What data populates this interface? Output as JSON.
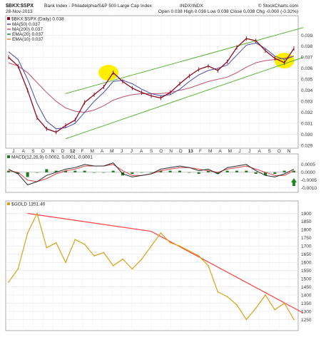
{
  "header": {
    "symbol": "$BKX:$SPX",
    "description": "Bank Index - Philadelphia/S&P 500 Large Cap Index",
    "exchange": "INDX/INDX",
    "watermark": "© StockCharts.com",
    "date": "28-Nov-2013",
    "ohlc_text": "Open 0.038  High 0.038  Low 0.038  Close 0.038  Chg -0.000 (-0.32%)"
  },
  "colors": {
    "price_bar": "#8b0a1e",
    "ma50": "#4a4aa8",
    "ma200": "#c0506a",
    "channel": "#5cb33a",
    "highlight": "#ffee00",
    "gold_line": "#d9a21a",
    "gold_trend": "#ff4040",
    "macd_line": "#2a2a2a",
    "macd_signal": "#d34545",
    "macd_hist": "#1f7a1f",
    "arrow": "#1f8a1f"
  },
  "chart_data": [
    {
      "type": "line",
      "title": "$BKX:$SPX (Daily) 0.038",
      "legend": [
        {
          "name": "MA(50) 0.037",
          "color": "#4a4aa8"
        },
        {
          "name": "MA(200) 0.037",
          "color": "#c0506a"
        },
        {
          "name": "EMA(20) 0.037",
          "color": "#22883a"
        },
        {
          "name": "EMA(10) 0.037",
          "color": "#e08a2a"
        }
      ],
      "ylim": [
        0.029,
        0.04
      ],
      "y_ticks": [
        "0.039",
        "0.038",
        "0.037",
        "0.036",
        "0.035",
        "0.034",
        "0.033",
        "0.032",
        "0.031",
        "0.030",
        "0.029"
      ],
      "x_labels": [
        "J",
        "A",
        "S",
        "O",
        "N",
        "D",
        "12",
        "F",
        "M",
        "A",
        "M",
        "J",
        "J",
        "A",
        "S",
        "O",
        "N",
        "D",
        "13",
        "F",
        "M",
        "A",
        "M",
        "J",
        "J",
        "A",
        "S",
        "O",
        "N"
      ],
      "x_bold": [
        "12",
        "13"
      ],
      "series": [
        {
          "name": "Price",
          "x": [
            0,
            1,
            2,
            3,
            4,
            5,
            6,
            7,
            8,
            9,
            10,
            11,
            12,
            13,
            14,
            15,
            16,
            17,
            18,
            19,
            20,
            21,
            22,
            23,
            24,
            25,
            26,
            27,
            28,
            29,
            30
          ],
          "values": [
            0.037,
            0.0362,
            0.034,
            0.0315,
            0.0305,
            0.0302,
            0.0308,
            0.0313,
            0.0329,
            0.0336,
            0.0343,
            0.0356,
            0.0348,
            0.0342,
            0.0338,
            0.0335,
            0.0333,
            0.0338,
            0.0346,
            0.0353,
            0.0359,
            0.0362,
            0.0358,
            0.0366,
            0.0379,
            0.0387,
            0.0385,
            0.0376,
            0.0369,
            0.0365,
            0.0378
          ]
        },
        {
          "name": "MA(50)",
          "x": [
            0,
            1,
            2,
            3,
            4,
            5,
            6,
            7,
            8,
            9,
            10,
            11,
            12,
            13,
            14,
            15,
            16,
            17,
            18,
            19,
            20,
            21,
            22,
            23,
            24,
            25,
            26,
            27,
            28,
            29,
            30
          ],
          "values": [
            0.0375,
            0.0368,
            0.035,
            0.0328,
            0.0312,
            0.0305,
            0.0306,
            0.031,
            0.032,
            0.033,
            0.0338,
            0.0348,
            0.0349,
            0.0346,
            0.0341,
            0.0337,
            0.0335,
            0.0336,
            0.0341,
            0.0348,
            0.0354,
            0.0358,
            0.036,
            0.0363,
            0.0372,
            0.0381,
            0.0383,
            0.0378,
            0.0371,
            0.0368,
            0.0371
          ]
        },
        {
          "name": "MA(200)",
          "x": [
            0,
            1,
            2,
            3,
            4,
            5,
            6,
            7,
            8,
            9,
            10,
            11,
            12,
            13,
            14,
            15,
            16,
            17,
            18,
            19,
            20,
            21,
            22,
            23,
            24,
            25,
            26,
            27,
            28,
            29,
            30
          ],
          "values": [
            0.0365,
            0.0362,
            0.0356,
            0.0347,
            0.0338,
            0.033,
            0.0324,
            0.0321,
            0.032,
            0.0322,
            0.0326,
            0.0331,
            0.0334,
            0.0336,
            0.0337,
            0.0337,
            0.0337,
            0.0338,
            0.034,
            0.0342,
            0.0345,
            0.0348,
            0.035,
            0.0352,
            0.0356,
            0.0361,
            0.0365,
            0.0367,
            0.0368,
            0.0369,
            0.0371
          ]
        }
      ],
      "channel_upper": {
        "x": [
          6,
          31
        ],
        "values": [
          0.0337,
          0.0397
        ]
      },
      "channel_lower": {
        "x": [
          6,
          31
        ],
        "values": [
          0.0296,
          0.037
        ]
      },
      "highlights": [
        {
          "x": 10.5,
          "y": 0.0356
        },
        {
          "x": 29,
          "y": 0.0367
        }
      ]
    },
    {
      "type": "line",
      "title": "MACD(12,26,9) 0.0002, 0.0001, 0.0001",
      "ylim": [
        -0.0011,
        0.0009
      ],
      "y_ticks": [
        "0.0005",
        "0.0000",
        "-0.0005",
        "-0.0010"
      ],
      "series": [
        {
          "name": "MACD",
          "x": [
            0,
            1,
            2,
            3,
            4,
            5,
            6,
            7,
            8,
            9,
            10,
            11,
            12,
            13,
            14,
            15,
            16,
            17,
            18,
            19,
            20,
            21,
            22,
            23,
            24,
            25,
            26,
            27,
            28,
            29,
            30
          ],
          "values": [
            0.0002,
            -0.0001,
            -0.0008,
            -0.0006,
            -0.0002,
            0.0,
            0.0002,
            0.0003,
            0.0005,
            0.0004,
            0.0004,
            0.0006,
            -0.0001,
            -0.0003,
            -0.0002,
            -0.0001,
            0.0002,
            0.0003,
            0.0004,
            0.0003,
            0.0001,
            0.0002,
            -0.0001,
            0.0003,
            0.0004,
            0.0005,
            0.0001,
            -0.0002,
            -0.0003,
            -0.0001,
            0.0002
          ]
        },
        {
          "name": "Signal",
          "x": [
            0,
            1,
            2,
            3,
            4,
            5,
            6,
            7,
            8,
            9,
            10,
            11,
            12,
            13,
            14,
            15,
            16,
            17,
            18,
            19,
            20,
            21,
            22,
            23,
            24,
            25,
            26,
            27,
            28,
            29,
            30
          ],
          "values": [
            0.0001,
            0.0,
            -0.0005,
            -0.0006,
            -0.0004,
            -0.0001,
            0.0001,
            0.0002,
            0.0004,
            0.0004,
            0.0004,
            0.0005,
            0.0001,
            -0.0002,
            -0.0002,
            -0.0001,
            0.0001,
            0.0002,
            0.0003,
            0.0003,
            0.0002,
            0.0001,
            0.0,
            0.0002,
            0.0003,
            0.0004,
            0.0002,
            0.0,
            -0.0002,
            -0.0002,
            0.0001
          ]
        }
      ]
    },
    {
      "type": "line",
      "title": "$GOLD 1251.40",
      "ylim": [
        1200,
        1950
      ],
      "y_ticks": [
        "1900",
        "1850",
        "1800",
        "1750",
        "1700",
        "1650",
        "1600",
        "1550",
        "1500",
        "1450",
        "1400",
        "1350",
        "1300",
        "1250"
      ],
      "series": [
        {
          "name": "Gold",
          "x": [
            0,
            1,
            2,
            3,
            4,
            5,
            6,
            7,
            8,
            9,
            10,
            11,
            12,
            13,
            14,
            15,
            16,
            17,
            18,
            19,
            20,
            21,
            22,
            23,
            24,
            25,
            26,
            27,
            28,
            29,
            30
          ],
          "values": [
            1480,
            1560,
            1780,
            1900,
            1690,
            1720,
            1600,
            1740,
            1710,
            1640,
            1660,
            1580,
            1620,
            1560,
            1620,
            1700,
            1780,
            1720,
            1700,
            1670,
            1640,
            1580,
            1420,
            1390,
            1340,
            1250,
            1320,
            1400,
            1310,
            1350,
            1250
          ]
        }
      ],
      "trendline": {
        "x": [
          2,
          15,
          31
        ],
        "values": [
          1900,
          1790,
          1290
        ]
      }
    }
  ]
}
